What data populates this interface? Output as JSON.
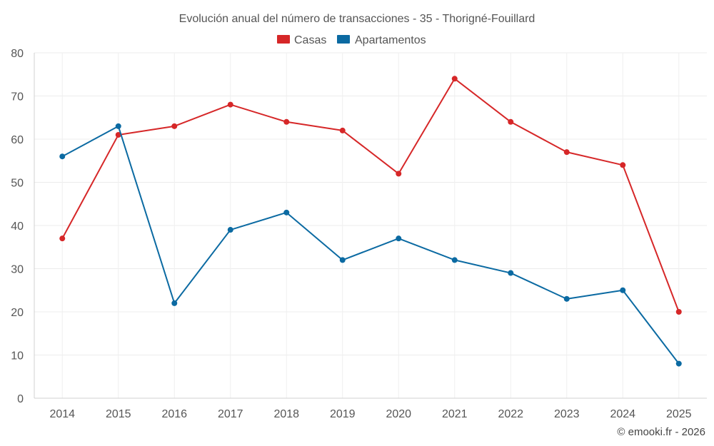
{
  "chart_data": {
    "type": "line",
    "title": "Evolución anual del número de transacciones - 35 - Thorigné-Fouillard",
    "xlabel": "",
    "ylabel": "",
    "categories": [
      "2014",
      "2015",
      "2016",
      "2017",
      "2018",
      "2019",
      "2020",
      "2021",
      "2022",
      "2023",
      "2024",
      "2025"
    ],
    "ylim": [
      0,
      80
    ],
    "yticks": [
      0,
      10,
      20,
      30,
      40,
      50,
      60,
      70,
      80
    ],
    "grid": true,
    "legend_position": "top-center",
    "series": [
      {
        "name": "Casas",
        "color": "#d62728",
        "values": [
          37,
          61,
          63,
          68,
          64,
          62,
          52,
          74,
          64,
          57,
          54,
          20
        ]
      },
      {
        "name": "Apartamentos",
        "color": "#0b6aa2",
        "values": [
          56,
          63,
          22,
          39,
          43,
          32,
          37,
          32,
          29,
          23,
          25,
          8
        ]
      }
    ],
    "watermark": "© emooki.fr - 2026"
  }
}
